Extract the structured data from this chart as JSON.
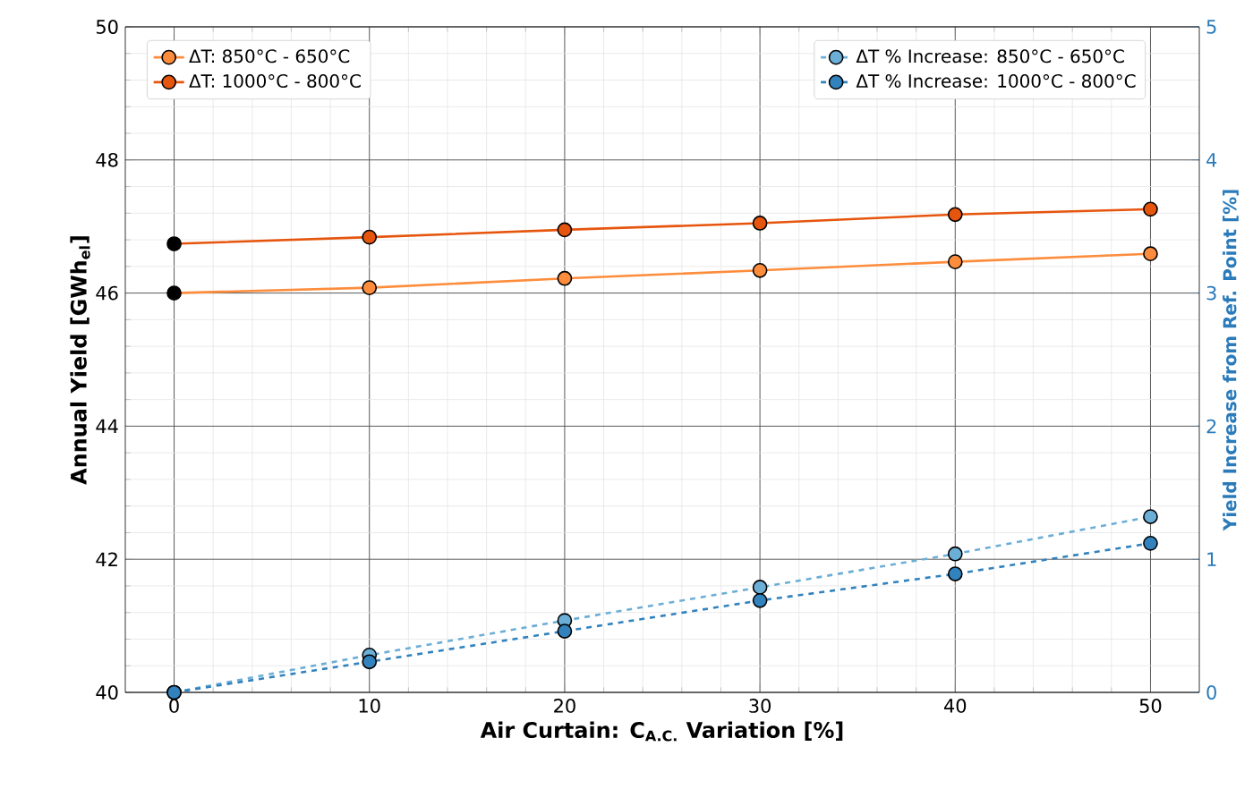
{
  "chart_data": {
    "type": "line",
    "xlabel": "Air Curtain: C$_{A.C.}$ Variation [%]",
    "ylabel": "Annual Yield [GWh$_{el}$]",
    "y2label": "Yield Increase from Ref. Point [%]",
    "x": [
      0,
      10,
      20,
      30,
      40,
      50
    ],
    "xlim": [
      -2.5,
      52.5
    ],
    "xticks": [
      0,
      10,
      20,
      30,
      40,
      50
    ],
    "ylim": [
      40,
      50
    ],
    "yticks": [
      40,
      42,
      44,
      46,
      48,
      50
    ],
    "y2lim": [
      0,
      5
    ],
    "y2ticks": [
      0,
      1,
      2,
      3,
      4,
      5
    ],
    "grid": true,
    "legend": "top left",
    "marker": "circle",
    "series": [
      {
        "name": "ΔT: 850°C - 650°C",
        "color": "#fd8d3c",
        "colors": [
          "#000000",
          "#fd8d3c",
          "#fd8d3c",
          "#fd8d3c",
          "#fd8d3c",
          "#fd8d3c"
        ],
        "values": [
          46.0,
          46.08,
          46.22,
          46.34,
          46.47,
          46.59
        ],
        "line_style": "solid"
      },
      {
        "name": "ΔT: 1000°C - 800°C",
        "color": "#e6550d",
        "colors": [
          "#000000",
          "#e6550d",
          "#e6550d",
          "#e6550d",
          "#e6550d",
          "#e6550d"
        ],
        "values": [
          46.74,
          46.84,
          46.95,
          47.05,
          47.18,
          47.26
        ],
        "line_style": "solid"
      },
      {
        "name": "ΔT % Increase: 850°C - 650°C",
        "color": "#6baed6",
        "values": [
          0,
          0.28,
          0.54,
          0.79,
          1.04,
          1.32
        ],
        "axis": "y2",
        "line_style": "dashed"
      },
      {
        "name": "ΔT % Increase: 1000°C - 800°C",
        "color": "#3182bd",
        "values": [
          0,
          0.23,
          0.46,
          0.69,
          0.89,
          1.12
        ],
        "axis": "y2",
        "line_style": "dashed"
      }
    ]
  }
}
